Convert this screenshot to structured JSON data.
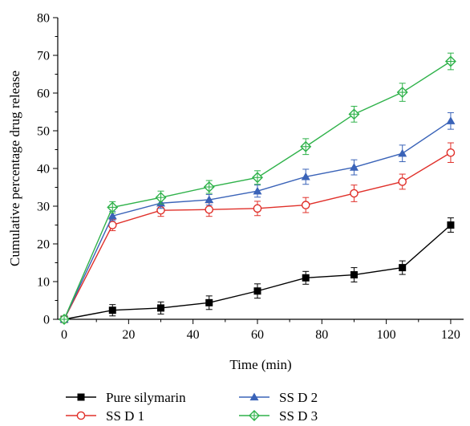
{
  "chart_data": {
    "type": "line",
    "title": "",
    "xlabel": "Time (min)",
    "ylabel": "Cumulative percentage drug release",
    "xlim": [
      -2,
      124
    ],
    "ylim": [
      0,
      80
    ],
    "x_ticks": [
      0,
      20,
      40,
      60,
      80,
      100,
      120
    ],
    "y_ticks": [
      0,
      10,
      20,
      30,
      40,
      50,
      60,
      70,
      80
    ],
    "x": [
      0,
      15,
      30,
      45,
      60,
      75,
      90,
      105,
      120
    ],
    "grid": false,
    "legend_position": "bottom",
    "series": [
      {
        "name": "Pure silymarin",
        "color": "#000000",
        "marker": "filled-square",
        "values": [
          0,
          2.4,
          3.0,
          4.4,
          7.5,
          11.0,
          11.8,
          13.7,
          25.0
        ],
        "errors": [
          0.6,
          1.5,
          1.6,
          1.8,
          1.9,
          1.7,
          1.9,
          1.8,
          1.9
        ]
      },
      {
        "name": "SS D 1",
        "color": "#e0302a",
        "marker": "open-circle",
        "values": [
          0,
          25.0,
          28.9,
          29.1,
          29.4,
          30.3,
          33.4,
          36.5,
          44.2
        ],
        "errors": [
          0.6,
          1.5,
          1.6,
          1.8,
          1.9,
          2.0,
          2.2,
          2.0,
          2.6
        ]
      },
      {
        "name": "SS D 2",
        "color": "#3a63b8",
        "marker": "filled-triangle",
        "values": [
          0,
          27.4,
          30.8,
          31.7,
          34.0,
          37.8,
          40.3,
          44.0,
          52.6
        ],
        "errors": [
          0.6,
          1.2,
          1.4,
          1.4,
          1.6,
          2.0,
          2.0,
          2.2,
          2.2
        ]
      },
      {
        "name": "SS D 3",
        "color": "#2fb24a",
        "marker": "open-diamond",
        "values": [
          0,
          29.7,
          32.3,
          35.1,
          37.6,
          45.8,
          54.4,
          60.2,
          68.4
        ],
        "errors": [
          0.6,
          1.5,
          1.7,
          1.7,
          1.8,
          2.1,
          2.1,
          2.4,
          2.2
        ]
      }
    ]
  }
}
